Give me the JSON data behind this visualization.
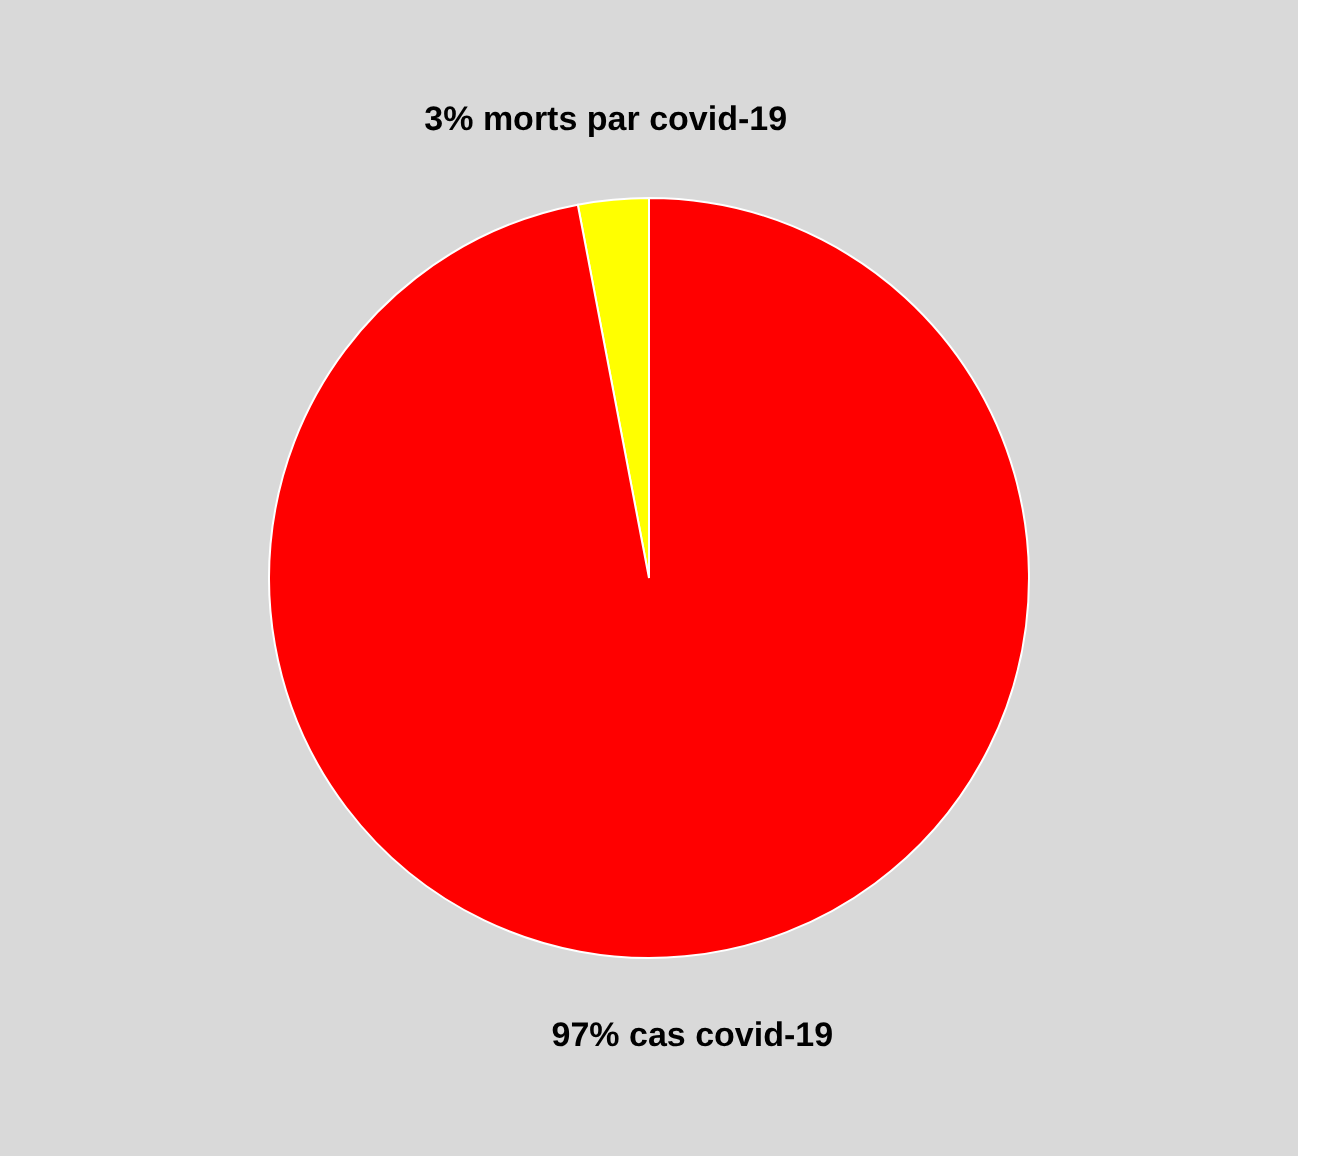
{
  "chart_data": {
    "type": "pie",
    "categories": [
      "morts par covid-19",
      "cas covid-19"
    ],
    "values": [
      3,
      97
    ],
    "colors": [
      "#ffff00",
      "#ff0000"
    ],
    "value_labels": [
      "3%",
      "97%"
    ],
    "legend": false
  }
}
